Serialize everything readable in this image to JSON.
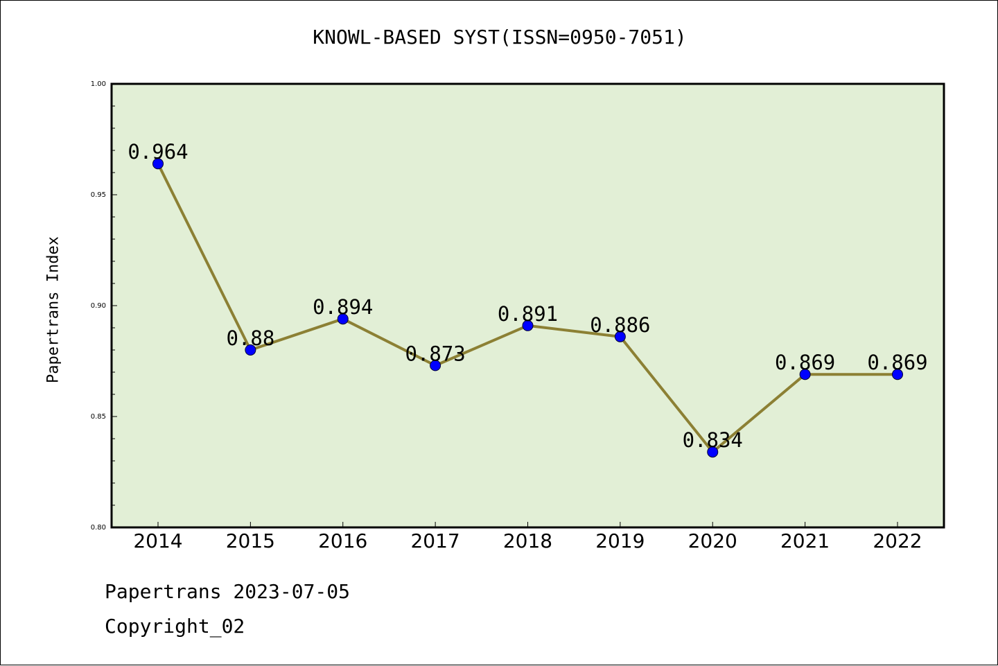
{
  "title": "KNOWL-BASED SYST(ISSN=0950-7051)",
  "footer": {
    "date_line": "Papertrans 2023-07-05",
    "copyright_line": "Copyright_02"
  },
  "colors": {
    "plot_background": "#e2efd6",
    "line": "#8c8034",
    "marker": "#0000ff"
  },
  "chart_data": {
    "type": "line",
    "title": "KNOWL-BASED SYST(ISSN=0950-7051)",
    "xlabel": "",
    "ylabel": "Papertrans Index",
    "categories": [
      "2014",
      "2015",
      "2016",
      "2017",
      "2018",
      "2019",
      "2020",
      "2021",
      "2022"
    ],
    "series": [
      {
        "values": [
          0.964,
          0.88,
          0.894,
          0.873,
          0.891,
          0.886,
          0.834,
          0.869,
          0.869
        ],
        "labels": [
          "0.964",
          "0.88",
          "0.894",
          "0.873",
          "0.891",
          "0.886",
          "0.834",
          "0.869",
          "0.869"
        ]
      }
    ],
    "ylim": [
      0.8,
      1.0
    ],
    "yticks": [
      "0.80",
      "0.85",
      "0.90",
      "0.95",
      "1.00"
    ],
    "grid": false,
    "legend": "none"
  }
}
